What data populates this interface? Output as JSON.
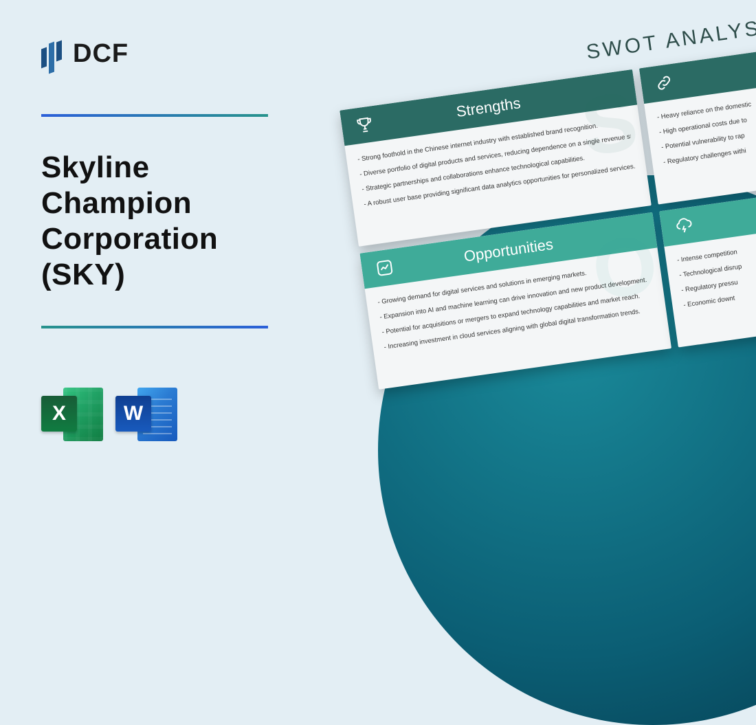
{
  "logo_text": "DCF",
  "title": "Skyline\nChampion\nCorporation\n(SKY)",
  "excel_letter": "X",
  "word_letter": "W",
  "swot": {
    "heading": "SWOT ANALYSIS",
    "strengths": {
      "title": "Strengths",
      "watermark": "S",
      "items": [
        "- Strong foothold in the Chinese internet industry with established brand recognition.",
        "- Diverse portfolio of digital products and services, reducing dependence on a single revenue stream.",
        "- Strategic partnerships and collaborations enhance technological capabilities.",
        "- A robust user base providing significant data analytics opportunities for personalized services."
      ]
    },
    "weaknesses": {
      "items": [
        "- Heavy reliance on the domestic",
        "- High operational costs due to",
        "- Potential vulnerability to rap",
        "- Regulatory challenges withi"
      ]
    },
    "opportunities": {
      "title": "Opportunities",
      "watermark": "O",
      "items": [
        "- Growing demand for digital services and solutions in emerging markets.",
        "- Expansion into AI and machine learning can drive innovation and new product development.",
        "- Potential for acquisitions or mergers to expand technology capabilities and market reach.",
        "- Increasing investment in cloud services aligning with global digital transformation trends."
      ]
    },
    "threats": {
      "items": [
        "- Intense competition",
        "- Technological disrup",
        "- Regulatory pressu",
        "- Economic downt"
      ]
    }
  },
  "colors": {
    "background": "#e3eef4",
    "strengths_header": "#2b6b64",
    "opportunities_header": "#3fab99",
    "circle_gradient_start": "#1a8a9a",
    "circle_gradient_end": "#053a4d"
  }
}
